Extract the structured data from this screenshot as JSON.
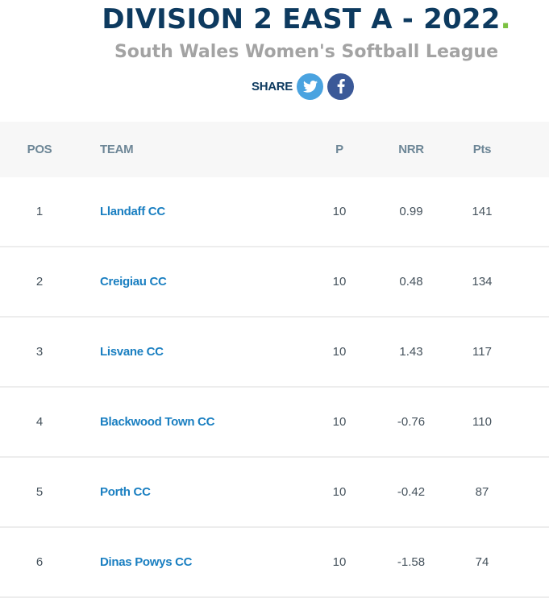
{
  "header": {
    "title": "DIVISION 2 EAST A - 2022",
    "title_dot": ".",
    "subtitle": "South Wales Women's Softball League",
    "share_label": "SHARE",
    "share_buttons": [
      {
        "icon": "twitter-icon",
        "color": "#4aa3e0"
      },
      {
        "icon": "facebook-icon",
        "color": "#3b5998"
      }
    ]
  },
  "table": {
    "columns": {
      "pos": "POS",
      "team": "TEAM",
      "p": "P",
      "nrr": "NRR",
      "pts": "Pts"
    },
    "rows": [
      {
        "pos": "1",
        "team": "Llandaff CC",
        "p": "10",
        "nrr": "0.99",
        "pts": "141"
      },
      {
        "pos": "2",
        "team": "Creigiau CC",
        "p": "10",
        "nrr": "0.48",
        "pts": "134"
      },
      {
        "pos": "3",
        "team": "Lisvane CC",
        "p": "10",
        "nrr": "1.43",
        "pts": "117"
      },
      {
        "pos": "4",
        "team": "Blackwood Town CC",
        "p": "10",
        "nrr": "-0.76",
        "pts": "110"
      },
      {
        "pos": "5",
        "team": "Porth CC",
        "p": "10",
        "nrr": "-0.42",
        "pts": "87"
      },
      {
        "pos": "6",
        "team": "Dinas Powys CC",
        "p": "10",
        "nrr": "-1.58",
        "pts": "74"
      }
    ]
  },
  "colors": {
    "title": "#0d3a5f",
    "accent_dot": "#7cc142",
    "subtitle": "#a3a3a3",
    "team_link": "#1a7fc1",
    "header_text": "#6e8797",
    "header_bg": "#f7f7f7"
  }
}
